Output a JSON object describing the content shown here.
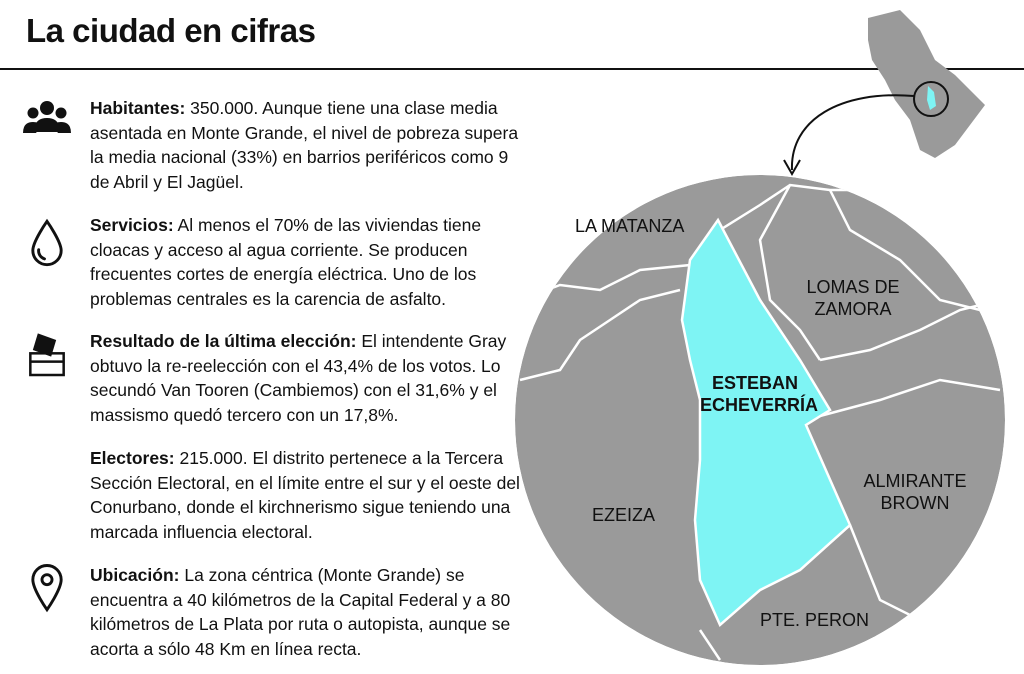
{
  "title": "La ciudad en cifras",
  "items": [
    {
      "key": "habitantes",
      "heading": "Habitantes:",
      "text": " 350.000. Aunque tiene una clase media asentada en Monte Grande, el nivel de pobreza supera la media nacional (33%) en barrios periféricos como 9 de Abril y El Jagüel.",
      "icon": "people-icon"
    },
    {
      "key": "servicios",
      "heading": "Servicios:",
      "text": " Al menos el 70% de las viviendas tiene cloacas y acceso al agua corriente. Se producen frecuentes cortes de energía eléctrica. Uno de los problemas centrales es la carencia de asfalto.",
      "icon": "water-drop-icon"
    },
    {
      "key": "resultado",
      "heading": "Resultado de la última elección:",
      "text": " El intendente Gray obtuvo la re-reelección con el 43,4% de los votos. Lo secundó Van Tooren (Cambiemos) con el 31,6% y el massismo quedó tercero con un 17,8%.",
      "icon": "ballot-box-icon"
    },
    {
      "key": "electores",
      "heading": "Electores:",
      "text": "  215.000. El distrito pertenece a la Tercera Sección Electoral, en el límite entre el sur y el oeste del Conurbano, donde el kirchnerismo sigue teniendo una marcada influencia electoral.",
      "icon": ""
    },
    {
      "key": "ubicacion",
      "heading": "Ubicación:",
      "text": " La zona céntrica (Monte Grande) se encuentra a 40 kilómetros de la Capital Federal y a 80 kilómetros de La Plata por ruta o autopista, aunque se acorta a sólo 48 Km en línea recta.",
      "icon": "location-pin-icon"
    }
  ],
  "map": {
    "labels": {
      "la_matanza": "LA MATANZA",
      "lomas_1": "LOMAS DE",
      "lomas_2": "ZAMORA",
      "esteban_1": "ESTEBAN",
      "esteban_2": "ECHEVERRÍA",
      "almirante_1": "ALMIRANTE",
      "almirante_2": "BROWN",
      "ezeiza": "EZEIZA",
      "pte_peron": "PTE. PERON"
    },
    "colors": {
      "highlight": "#7ef4f4",
      "district": "#9a9a9a",
      "border": "#ffffff"
    }
  }
}
